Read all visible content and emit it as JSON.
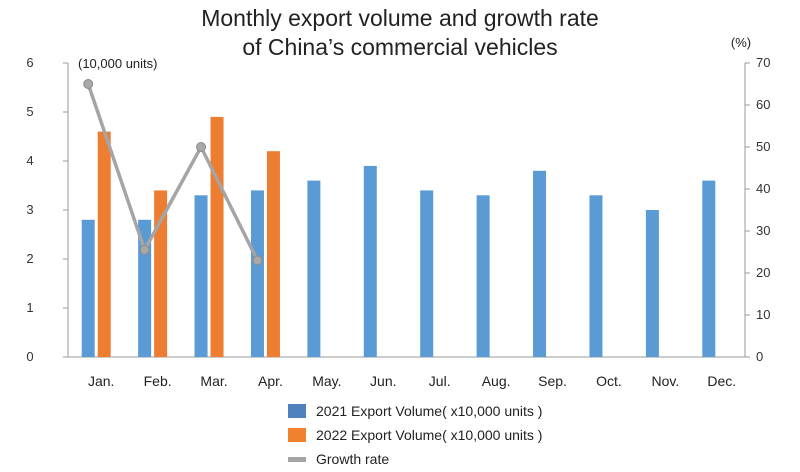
{
  "chart_data": {
    "type": "bar",
    "title_line1": "Monthly export volume and growth rate",
    "title_line2": "of China’s commercial vehicles",
    "left_unit": "(10,000 units)",
    "right_unit": "(%)",
    "categories": [
      "Jan.",
      "Feb.",
      "Mar.",
      "Apr.",
      "May.",
      "Jun.",
      "Jul.",
      "Aug.",
      "Sep.",
      "Oct.",
      "Nov.",
      "Dec."
    ],
    "ylim": [
      0,
      6
    ],
    "yticks": [
      "0",
      "1",
      "2",
      "3",
      "4",
      "5",
      "6"
    ],
    "y2lim": [
      0,
      70
    ],
    "y2ticks": [
      "0",
      "10",
      "20",
      "30",
      "40",
      "50",
      "60",
      "70"
    ],
    "series": [
      {
        "name": "2021 Export Volume( x10,000 units )",
        "kind": "bar",
        "color": "#5B9BD5",
        "values": [
          2.8,
          2.8,
          3.3,
          3.4,
          3.6,
          3.9,
          3.4,
          3.3,
          3.8,
          3.3,
          3.0,
          3.6
        ]
      },
      {
        "name": "2022 Export Volume( x10,000 units )",
        "kind": "bar",
        "color": "#ED7D31",
        "values": [
          4.6,
          3.4,
          4.9,
          4.2,
          null,
          null,
          null,
          null,
          null,
          null,
          null,
          null
        ]
      },
      {
        "name": "Growth rate",
        "kind": "line",
        "axis": "right",
        "color": "#A5A5A5",
        "values": [
          65,
          25.5,
          50,
          23,
          null,
          null,
          null,
          null,
          null,
          null,
          null,
          null
        ]
      }
    ],
    "legend": {
      "items": [
        {
          "label": "2021 Export Volume( x10,000 units )",
          "color": "#4F81BD"
        },
        {
          "label": "2022 Export Volume( x10,000 units )",
          "color": "#F0822D"
        },
        {
          "label": "Growth rate",
          "color": "#A5A5A5"
        }
      ]
    }
  }
}
